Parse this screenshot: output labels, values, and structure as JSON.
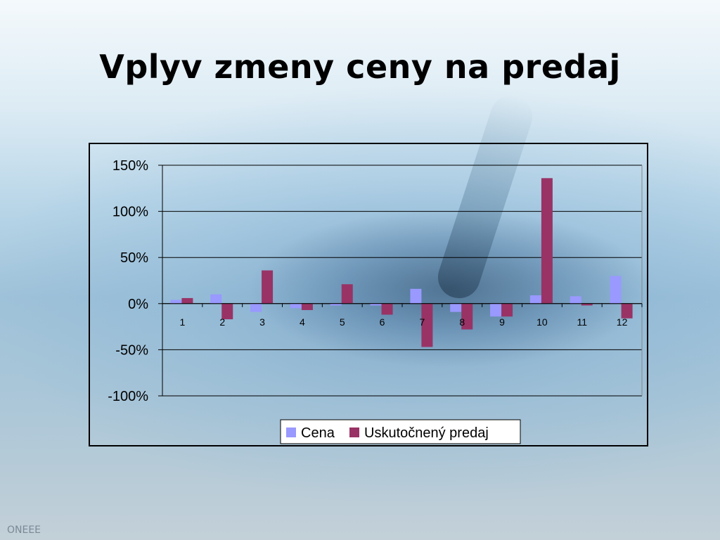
{
  "slide": {
    "title": "Vplyv zmeny ceny na predaj",
    "footer": "ONEEE"
  },
  "chart_data": {
    "type": "bar",
    "categories": [
      "1",
      "2",
      "3",
      "4",
      "5",
      "6",
      "7",
      "8",
      "9",
      "10",
      "11",
      "12"
    ],
    "series": [
      {
        "name": "Cena",
        "color": "#9999ff",
        "values": [
          4,
          10,
          -9,
          -5,
          -2,
          -2,
          16,
          -9,
          -14,
          9,
          8,
          30
        ]
      },
      {
        "name": "Uskutočnený predaj",
        "color": "#993366",
        "values": [
          6,
          -17,
          36,
          -7,
          21,
          -12,
          -47,
          -28,
          -14,
          136,
          -2,
          -16
        ]
      }
    ],
    "ylim": [
      -100,
      150
    ],
    "yticks": [
      -100,
      -50,
      0,
      50,
      100,
      150
    ],
    "ytick_labels": [
      "-100%",
      "-50%",
      "0%",
      "50%",
      "100%",
      "150%"
    ],
    "grid": true,
    "legend_position": "bottom"
  }
}
